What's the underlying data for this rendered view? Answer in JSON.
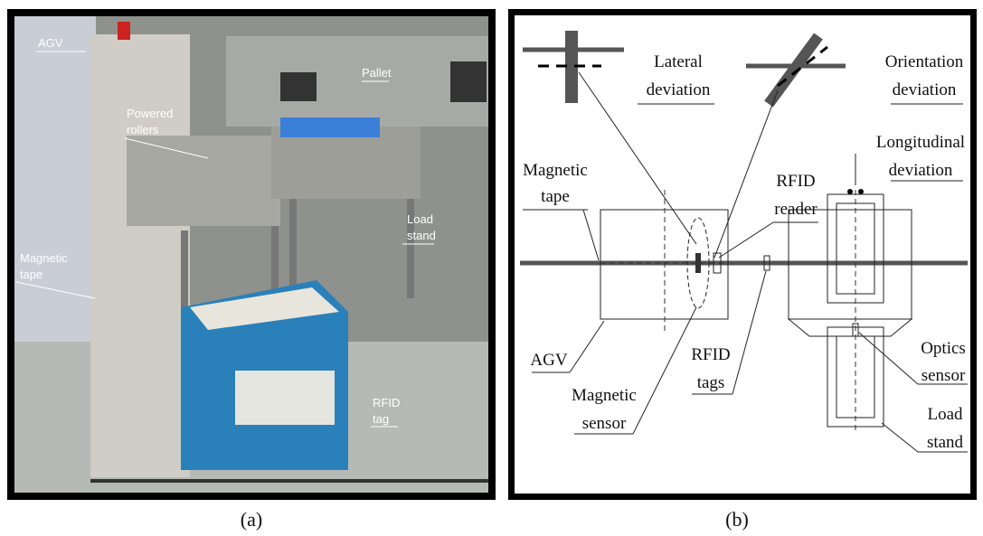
{
  "photo": {
    "labels": [
      {
        "lines": [
          "AGV"
        ]
      },
      {
        "lines": [
          "Powered",
          "rollers"
        ]
      },
      {
        "lines": [
          "Pallet"
        ]
      },
      {
        "lines": [
          "Load",
          "stand"
        ]
      },
      {
        "lines": [
          "Magnetic",
          "tape"
        ]
      },
      {
        "lines": [
          "RFID",
          "tag"
        ]
      }
    ],
    "caption": "(a)"
  },
  "diagram": {
    "labels": [
      {
        "lines": [
          "Lateral",
          "deviation"
        ]
      },
      {
        "lines": [
          "Orientation",
          "deviation"
        ]
      },
      {
        "lines": [
          "Longitudinal",
          "deviation"
        ]
      },
      {
        "lines": [
          "Magnetic",
          "tape"
        ]
      },
      {
        "lines": [
          "RFID",
          "reader"
        ]
      },
      {
        "lines": [
          "AGV"
        ]
      },
      {
        "lines": [
          "RFID",
          "tags"
        ]
      },
      {
        "lines": [
          "Magnetic",
          "sensor"
        ]
      },
      {
        "lines": [
          "Optics",
          "sensor"
        ]
      },
      {
        "lines": [
          "Load",
          "stand"
        ]
      }
    ],
    "caption": "(b)"
  }
}
